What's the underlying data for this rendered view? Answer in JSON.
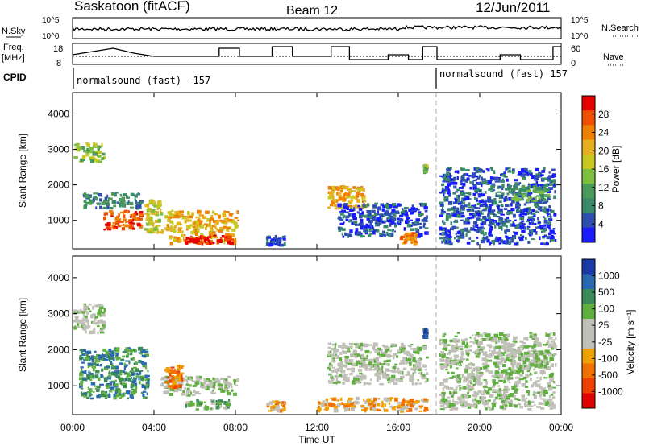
{
  "header": {
    "station": "Saskatoon (fitACF)",
    "beam": "Beam 12",
    "date": "12/Jun/2011"
  },
  "top_panels": {
    "nsky_label": "N.Sky",
    "nsky_ticks": [
      "10^5",
      "10^0"
    ],
    "nsearch_label": "N.Search",
    "nsearch_ticks": [
      "10^5",
      "10^0"
    ],
    "freq_label_1": "Freq.",
    "freq_label_2": "[MHz]",
    "freq_ticks": [
      "18",
      "8"
    ],
    "nave_label": "Nave",
    "nave_ticks": [
      "60",
      "0"
    ],
    "cpid_label": "CPID",
    "cpid_1": "normalsound (fast) -157",
    "cpid_2": "normalsound (fast) 157"
  },
  "colors": {
    "power_scale": [
      "#1a1aff",
      "#2e4fb0",
      "#3a8a6a",
      "#4a9a5a",
      "#7fbf3f",
      "#c8c820",
      "#e6b020",
      "#f08000",
      "#f05000",
      "#e80000"
    ],
    "velocity_scale": [
      "#1a3aaa",
      "#2a6ab0",
      "#3a8a5a",
      "#60b040",
      "#c0c0b8",
      "#c0c0b8",
      "#f0a000",
      "#f07000",
      "#f04000",
      "#e00000"
    ]
  },
  "chart_data": [
    {
      "type": "heatmap",
      "title": "Power",
      "xlabel": "Time UT",
      "ylabel": "Slant Range [km]",
      "x_ticks": [
        "00:00",
        "04:00",
        "08:00",
        "12:00",
        "16:00",
        "20:00",
        "00:00"
      ],
      "y_ticks": [
        1000,
        2000,
        3000,
        4000
      ],
      "ylim": [
        200,
        4600
      ],
      "colorbar_label": "Power [dB]",
      "colorbar_ticks": [
        4,
        8,
        12,
        16,
        20,
        24,
        28
      ],
      "regions": [
        {
          "t0": 0.0,
          "t1": 1.7,
          "r0": 2600,
          "r1": 3200,
          "level": 4
        },
        {
          "t0": 0.5,
          "t1": 3.5,
          "r0": 1300,
          "r1": 1800,
          "level": 2
        },
        {
          "t0": 1.5,
          "t1": 3.5,
          "r0": 700,
          "r1": 1300,
          "level": 8
        },
        {
          "t0": 3.5,
          "t1": 4.5,
          "r0": 600,
          "r1": 1600,
          "level": 5
        },
        {
          "t0": 4.5,
          "t1": 8.2,
          "r0": 300,
          "r1": 1300,
          "level": 6
        },
        {
          "t0": 5.5,
          "t1": 8.0,
          "r0": 300,
          "r1": 600,
          "level": 9
        },
        {
          "t0": 9.5,
          "t1": 10.5,
          "r0": 250,
          "r1": 600,
          "level": 1
        },
        {
          "t0": 12.5,
          "t1": 14.5,
          "r0": 1300,
          "r1": 2000,
          "level": 6
        },
        {
          "t0": 13.0,
          "t1": 17.5,
          "r0": 500,
          "r1": 1500,
          "level": 1
        },
        {
          "t0": 16.0,
          "t1": 17.0,
          "r0": 300,
          "r1": 700,
          "level": 7
        },
        {
          "t0": 17.2,
          "t1": 17.5,
          "r0": 2300,
          "r1": 2600,
          "level": 4
        },
        {
          "t0": 18.0,
          "t1": 23.8,
          "r0": 300,
          "r1": 2500,
          "level": 1
        },
        {
          "t0": 21.5,
          "t1": 23.5,
          "r0": 1500,
          "r1": 2000,
          "level": 3
        }
      ]
    },
    {
      "type": "heatmap",
      "title": "Velocity",
      "xlabel": "Time UT",
      "ylabel": "Slant Range [km]",
      "x_ticks": [
        "00:00",
        "04:00",
        "08:00",
        "12:00",
        "16:00",
        "20:00",
        "00:00"
      ],
      "y_ticks": [
        1000,
        2000,
        3000,
        4000
      ],
      "ylim": [
        200,
        4600
      ],
      "colorbar_label": "Velocity [m s⁻¹]",
      "colorbar_ticks": [
        1000,
        500,
        100,
        25,
        -25,
        -100,
        -500,
        -1000
      ],
      "regions": [
        {
          "t0": 0.0,
          "t1": 1.7,
          "r0": 2400,
          "r1": 3300,
          "level": 4
        },
        {
          "t0": 0.3,
          "t1": 3.8,
          "r0": 600,
          "r1": 2100,
          "level": 2
        },
        {
          "t0": 4.3,
          "t1": 8.2,
          "r0": 700,
          "r1": 1300,
          "level": 4
        },
        {
          "t0": 4.5,
          "t1": 5.5,
          "r0": 900,
          "r1": 1600,
          "level": 7
        },
        {
          "t0": 5.5,
          "t1": 7.8,
          "r0": 300,
          "r1": 650,
          "level": 3
        },
        {
          "t0": 9.5,
          "t1": 10.5,
          "r0": 250,
          "r1": 600,
          "level": 6
        },
        {
          "t0": 12.5,
          "t1": 17.5,
          "r0": 1000,
          "r1": 2200,
          "level": 4
        },
        {
          "t0": 12.0,
          "t1": 17.5,
          "r0": 250,
          "r1": 700,
          "level": 6
        },
        {
          "t0": 17.2,
          "t1": 17.5,
          "r0": 2300,
          "r1": 2600,
          "level": 1
        },
        {
          "t0": 18.0,
          "t1": 23.8,
          "r0": 300,
          "r1": 2500,
          "level": 4
        },
        {
          "t0": 21.5,
          "t1": 23.5,
          "r0": 1400,
          "r1": 2000,
          "level": 4
        }
      ]
    }
  ]
}
